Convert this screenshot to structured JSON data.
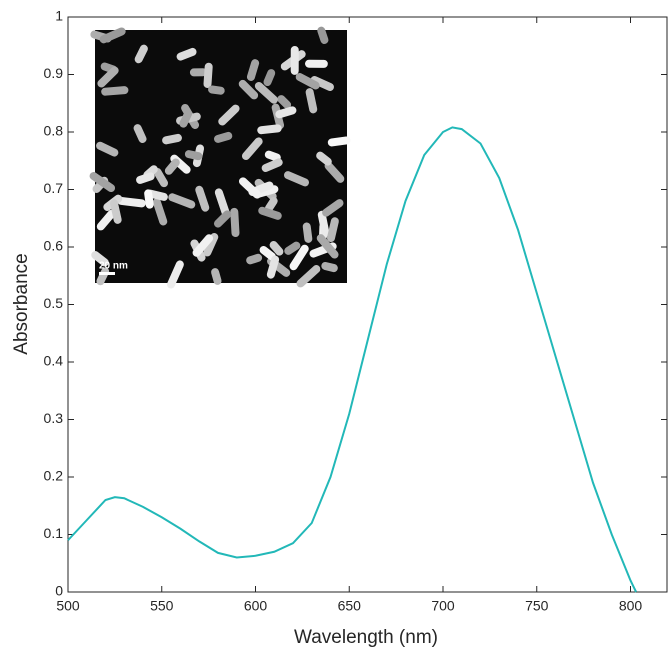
{
  "chart_data": {
    "type": "line",
    "x_label": "Wavelength (nm)",
    "y_label": "Absorbance",
    "x": [
      500,
      510,
      520,
      525,
      530,
      540,
      550,
      560,
      570,
      580,
      590,
      600,
      610,
      620,
      630,
      640,
      650,
      660,
      670,
      680,
      690,
      700,
      705,
      710,
      720,
      730,
      740,
      750,
      760,
      770,
      780,
      790,
      800,
      803
    ],
    "series": [
      {
        "color": "#22b8b8",
        "values": [
          0.09,
          0.125,
          0.16,
          0.165,
          0.163,
          0.148,
          0.13,
          0.11,
          0.088,
          0.068,
          0.06,
          0.063,
          0.07,
          0.085,
          0.12,
          0.2,
          0.31,
          0.44,
          0.57,
          0.68,
          0.76,
          0.8,
          0.808,
          0.805,
          0.78,
          0.72,
          0.63,
          0.52,
          0.41,
          0.3,
          0.19,
          0.1,
          0.02,
          0
        ]
      }
    ],
    "xlim": [
      500,
      820
    ],
    "ylim": [
      0,
      1
    ],
    "xticks": [
      500,
      550,
      600,
      650,
      700,
      750,
      800
    ],
    "yticks": [
      0,
      0.1,
      0.2,
      0.3,
      0.4,
      0.5,
      0.6,
      0.7,
      0.8,
      0.9,
      1
    ],
    "annotations": [
      "20 nm"
    ]
  }
}
